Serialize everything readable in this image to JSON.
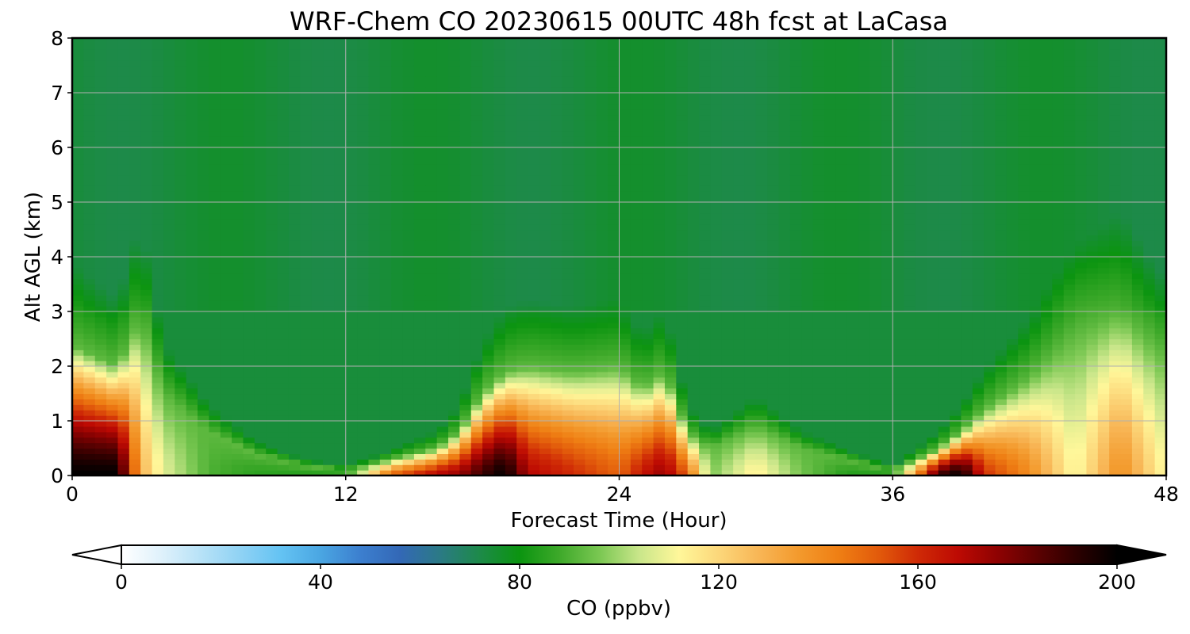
{
  "chart_data": {
    "type": "heatmap",
    "title": "WRF-Chem CO  20230615 00UTC 48h fcst at LaCasa",
    "xlabel": "Forecast Time (Hour)",
    "ylabel": "Alt AGL (km)",
    "xlim": [
      0,
      48
    ],
    "ylim": [
      0,
      8
    ],
    "xticks": [
      "0",
      "12",
      "24",
      "36",
      "48"
    ],
    "yticks": [
      "0",
      "1",
      "2",
      "3",
      "4",
      "5",
      "6",
      "7",
      "8"
    ],
    "grid": true,
    "colorbar": {
      "label": "CO  (ppbv)",
      "range": [
        0,
        200
      ],
      "extend": "both",
      "ticks": [
        "0",
        "40",
        "80",
        "120",
        "160",
        "200"
      ],
      "colors": [
        "#ffffff",
        "#dff1fb",
        "#b7e2f7",
        "#8fd2f4",
        "#64c3f3",
        "#4aa6e2",
        "#3c7fcf",
        "#3368b6",
        "#2b7a85",
        "#1d8a49",
        "#0b9410",
        "#3ea92a",
        "#7ac752",
        "#c9e68a",
        "#fff79a",
        "#fcd77a",
        "#f8b656",
        "#f39a2d",
        "#ef7f14",
        "#e25b0b",
        "#cf2a06",
        "#bd0a03",
        "#8e0202",
        "#5c0101",
        "#2b0000",
        "#000000"
      ]
    },
    "times_h": [
      0,
      2,
      3,
      4,
      6,
      8,
      10,
      12,
      14,
      16,
      17,
      18,
      19,
      20,
      22,
      24,
      25,
      26,
      27,
      28,
      30,
      32,
      34,
      36,
      38,
      39,
      40,
      42,
      44,
      46,
      48
    ],
    "altitudes_km": [
      0,
      0.05,
      0.15,
      0.3,
      0.5,
      0.75,
      1.0,
      1.3,
      1.6,
      1.9,
      2.2,
      2.6,
      3.0,
      3.5,
      4.0,
      5.0,
      6.0,
      7.0,
      8.0
    ],
    "co_ppbv_profile_at_surface_by_time": [
      200,
      200,
      130,
      108,
      90,
      85,
      84,
      84,
      150,
      170,
      175,
      190,
      200,
      170,
      160,
      150,
      165,
      175,
      150,
      96,
      115,
      95,
      84,
      84,
      190,
      200,
      160,
      140,
      110,
      140,
      110
    ],
    "peak_layer_top_km_by_time": [
      2.4,
      2.0,
      2.9,
      1.5,
      0.8,
      0.4,
      0.2,
      0.1,
      0.3,
      0.5,
      0.8,
      1.5,
      1.9,
      2.0,
      1.9,
      2.0,
      1.6,
      1.9,
      0.8,
      0.5,
      0.9,
      0.5,
      0.3,
      0.1,
      0.5,
      0.8,
      1.2,
      1.8,
      2.6,
      3.0,
      2.2
    ],
    "background_aloft_ppbv": 74,
    "notes_visible": "Elevated CO (orange to black) near the surface at 0-3 h, 17-27 h and 38-48 h; green background (~70-80 ppbv) aloft"
  }
}
